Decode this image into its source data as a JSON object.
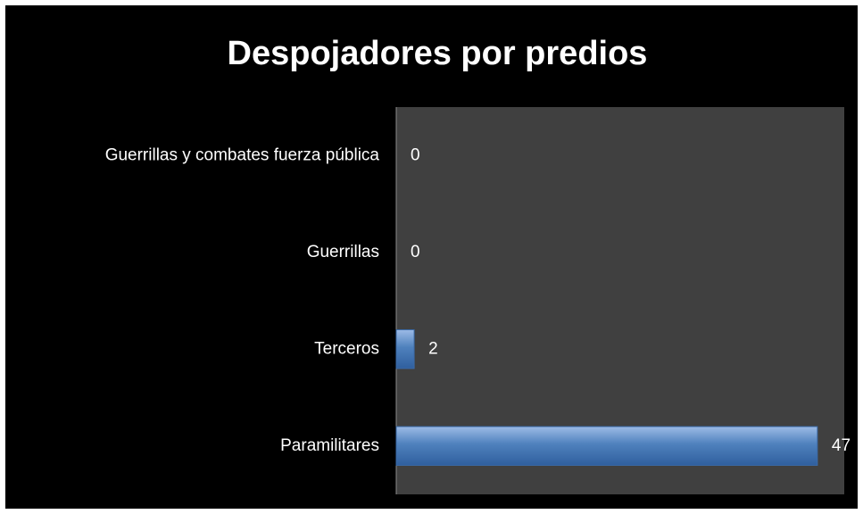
{
  "chart_data": {
    "type": "bar",
    "orientation": "horizontal",
    "title": "Despojadores por predios",
    "categories": [
      "Guerrillas y combates fuerza pública",
      "Guerrillas",
      "Terceros",
      "Paramilitares"
    ],
    "values": [
      0,
      0,
      2,
      47
    ],
    "color": "#4f81bd",
    "xlim": [
      0,
      50
    ]
  }
}
